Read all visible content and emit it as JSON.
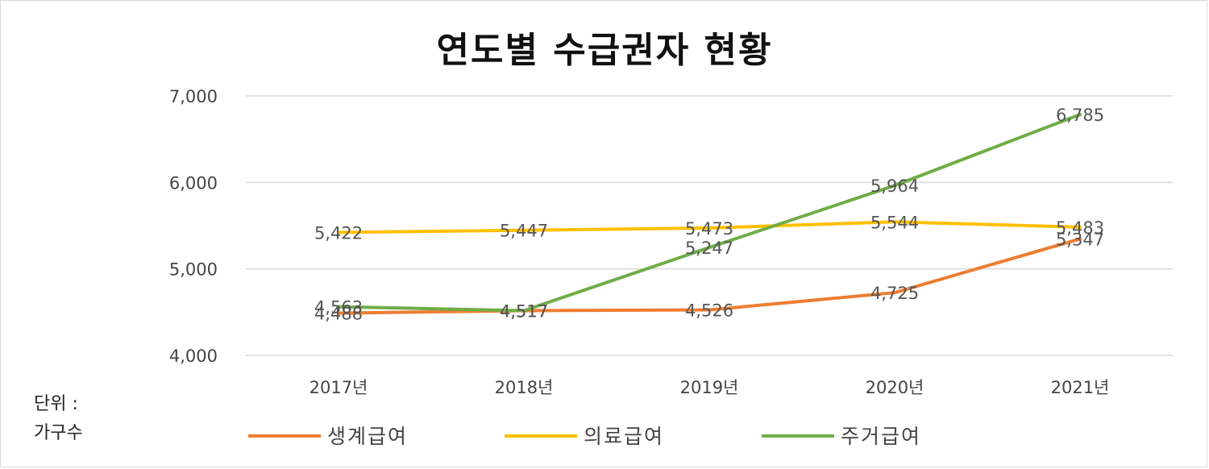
{
  "unit_label": "단위 :\n가구수",
  "chart_data": {
    "type": "line",
    "title": "연도별 수급권자 현황",
    "categories": [
      "2017년",
      "2018년",
      "2019년",
      "2020년",
      "2021년"
    ],
    "ylim": [
      4000,
      7000
    ],
    "yticks": [
      4000,
      5000,
      6000,
      7000
    ],
    "ytick_labels": [
      "4,000",
      "5,000",
      "6,000",
      "7,000"
    ],
    "grid": true,
    "legend_position": "bottom",
    "series": [
      {
        "name": "생계급여",
        "color": "#ED7D31",
        "values": [
          4488,
          4517,
          4526,
          4725,
          5347
        ],
        "labels": [
          "4,488",
          "4,517",
          "4,526",
          "4,725",
          "5,347"
        ]
      },
      {
        "name": "의료급여",
        "color": "#FFC000",
        "values": [
          5422,
          5447,
          5473,
          5544,
          5483
        ],
        "labels": [
          "5,422",
          "5,447",
          "5,473",
          "5,544",
          "5,483"
        ]
      },
      {
        "name": "주거급여",
        "color": "#70AD47",
        "values": [
          4563,
          4517,
          5247,
          5964,
          6785
        ],
        "labels": [
          "4,563",
          "4,517",
          "5,247",
          "5,964",
          "6,785"
        ]
      }
    ]
  }
}
